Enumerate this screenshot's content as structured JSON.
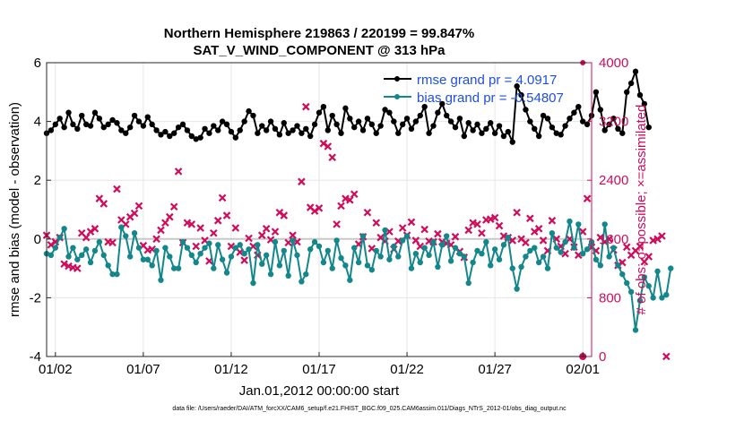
{
  "chart_data": {
    "type": "line",
    "title_line1": "Northern Hemisphere 219863 / 220199 = 99.847%",
    "title_line2": "SAT_V_WIND_COMPONENT @ 313 hPa",
    "xlabel": "Jan.01,2012 00:00:00 start",
    "ylabel": "rmse and bias (model - observation)",
    "y2label": "# of obs: o=possible; ×=assimilated",
    "footnote": "data file: /Users/raeder/DAI/ATM_forcXX/CAM6_setup/f.e21.FHIST_BGC.f09_025.CAM6assim.011/Diags_NTrS_2012-01/obs_diag_output.nc",
    "xlim": [
      0.5,
      31.5
    ],
    "ylim": [
      -4,
      6
    ],
    "y2lim": [
      0,
      4000
    ],
    "xticks": [
      1,
      6,
      11,
      16,
      21,
      26,
      31
    ],
    "xtick_labels": [
      "01/02",
      "01/07",
      "01/12",
      "01/17",
      "01/22",
      "01/27",
      "02/01"
    ],
    "yticks": [
      -4,
      -2,
      0,
      2,
      4,
      6
    ],
    "ytick_labels": [
      "-4",
      "-2",
      "0",
      "2",
      "4",
      "6"
    ],
    "y2ticks": [
      0,
      800,
      1600,
      2400,
      3200,
      4000
    ],
    "y2tick_labels": [
      "0",
      "800",
      "1600",
      "2400",
      "3200",
      "4000"
    ],
    "grid": true,
    "legend_position": "top-right",
    "series": [
      {
        "name": "rmse grand pr = 4.0917",
        "color": "#000000",
        "marker": "dot",
        "x_start": 0.5,
        "x_step": 0.25,
        "values": [
          3.6,
          3.7,
          3.9,
          4.1,
          3.8,
          4.3,
          3.9,
          3.75,
          4.2,
          3.9,
          3.85,
          4.3,
          4.1,
          3.8,
          3.9,
          4.05,
          3.95,
          3.7,
          3.6,
          3.8,
          4.2,
          4.0,
          3.85,
          4.15,
          3.9,
          3.7,
          3.55,
          3.65,
          3.5,
          3.6,
          3.8,
          3.9,
          3.7,
          3.5,
          3.4,
          3.45,
          3.75,
          3.6,
          3.85,
          3.7,
          4.0,
          3.9,
          3.65,
          3.45,
          3.7,
          4.0,
          4.35,
          4.2,
          3.6,
          3.85,
          3.7,
          4.0,
          3.75,
          3.55,
          3.95,
          3.6,
          3.7,
          3.85,
          3.6,
          3.75,
          3.5,
          3.9,
          4.3,
          4.5,
          3.7,
          4.2,
          3.9,
          3.6,
          4.45,
          4.1,
          3.8,
          4.0,
          3.7,
          4.1,
          3.9,
          3.6,
          3.85,
          4.4,
          4.3,
          4.0,
          3.6,
          3.9,
          4.1,
          3.75,
          4.0,
          4.2,
          4.5,
          3.6,
          3.85,
          4.3,
          4.6,
          4.2,
          4.0,
          3.8,
          4.1,
          3.5,
          3.95,
          3.7,
          3.9,
          3.6,
          3.75,
          3.95,
          3.6,
          3.85,
          3.5,
          3.65,
          3.3,
          5.2,
          4.9,
          4.4,
          4.0,
          3.75,
          3.5,
          4.2,
          4.1,
          3.8,
          3.6,
          3.55,
          3.85,
          4.1,
          4.3,
          4.5,
          4.0,
          3.9,
          4.2,
          5.0,
          4.4,
          3.7,
          3.9,
          4.1,
          3.75,
          3.6,
          5.0,
          5.3,
          5.7,
          4.9,
          4.6,
          3.8
        ]
      },
      {
        "name": "bias grand pr = -0.54807",
        "color": "#13878b",
        "marker": "dot",
        "x_start": 0.5,
        "x_step": 0.25,
        "values": [
          -0.5,
          -0.55,
          -0.3,
          0.05,
          0.35,
          -0.6,
          -0.3,
          -0.7,
          -0.55,
          -0.35,
          -0.8,
          -0.4,
          -0.1,
          -0.55,
          -0.9,
          -1.2,
          -1.2,
          0.4,
          0.1,
          -0.6,
          0.2,
          -0.3,
          -0.7,
          -0.7,
          -0.9,
          -0.4,
          -1.4,
          -0.3,
          -0.6,
          -1.0,
          -1.0,
          -0.1,
          -0.3,
          -0.55,
          -0.8,
          -0.5,
          -0.3,
          -0.15,
          -1.0,
          -0.2,
          -0.7,
          -1.15,
          -0.6,
          -0.3,
          -0.2,
          -0.5,
          -0.35,
          -1.5,
          -0.2,
          -0.85,
          -0.55,
          -1.2,
          -0.1,
          -0.9,
          -0.4,
          -1.25,
          -0.05,
          -0.55,
          -1.45,
          -1.2,
          -0.35,
          -0.1,
          -0.25,
          -0.8,
          -0.4,
          -1.0,
          -0.05,
          -0.65,
          -0.9,
          -1.4,
          -0.3,
          -0.8,
          0.1,
          -0.9,
          -1.05,
          -0.4,
          -0.6,
          0.3,
          -0.7,
          -0.25,
          -0.6,
          -0.05,
          0.1,
          -1.0,
          -0.5,
          -0.8,
          -0.3,
          -0.55,
          -0.1,
          -0.95,
          -0.2,
          0.1,
          -0.75,
          -0.3,
          -0.5,
          -0.6,
          -1.5,
          -0.8,
          -0.4,
          -0.5,
          -0.1,
          -0.9,
          -0.35,
          -0.7,
          -0.2,
          0.05,
          -1.0,
          -1.7,
          -0.95,
          -0.6,
          -0.4,
          -0.3,
          -0.8,
          -0.6,
          -1.0,
          0.2,
          -0.3,
          -0.45,
          -0.1,
          0.6,
          -0.3,
          0.5,
          -0.5,
          -0.35,
          -0.1,
          -0.7,
          -0.9,
          0.5,
          -0.6,
          -0.3,
          -0.9,
          -1.2,
          -1.5,
          -1.8,
          -3.1,
          -2.1,
          -1.3,
          -1.6,
          -2.0,
          -1.1,
          -2.0,
          -1.9,
          -1.0
        ]
      },
      {
        "name": "# of obs assimilated",
        "color": "#d00c5a",
        "marker": "x",
        "x_start": 0.5,
        "x_step": 0.25,
        "values": [
          1650,
          1520,
          1560,
          1620,
          1260,
          1230,
          1210,
          1200,
          1680,
          1620,
          1700,
          1740,
          2150,
          2080,
          1560,
          1550,
          2280,
          1860,
          1800,
          1900,
          1950,
          2050,
          1510,
          1450,
          1460,
          1600,
          1720,
          1820,
          1900,
          2040,
          2520,
          1550,
          1820,
          1800,
          1500,
          1750,
          1580,
          1300,
          1680,
          1850,
          2160,
          1920,
          1500,
          1750,
          1420,
          1310,
          1610,
          1500,
          1380,
          1650,
          1740,
          1590,
          1700,
          1960,
          1920,
          1550,
          1650,
          1560,
          2380,
          3400,
          2030,
          1980,
          2020,
          2900,
          2860,
          2710,
          1800,
          2050,
          2150,
          2130,
          2210,
          1530,
          1630,
          1960,
          1470,
          1820,
          1620,
          1570,
          1700,
          1460,
          1570,
          1750,
          1650,
          1830,
          1580,
          1500,
          1730,
          1570,
          1560,
          1670,
          1560,
          1540,
          1520,
          1630,
          1430,
          1350,
          1720,
          1820,
          1800,
          1680,
          1860,
          1870,
          1890,
          1780,
          1640,
          1620,
          1580,
          1960,
          1600,
          1550,
          1880,
          1700,
          1740,
          1580,
          1440,
          1850,
          1600,
          1500,
          1400,
          1600,
          1490,
          1380,
          1700,
          2150,
          1490,
          1440,
          1620,
          1560,
          1600,
          1450,
          1240,
          1280,
          1490,
          1380,
          1440,
          1500,
          1290,
          1360,
          1580,
          1600,
          1640,
          0
        ]
      }
    ],
    "top_right_point": {
      "x": 31,
      "value": 4000
    }
  }
}
